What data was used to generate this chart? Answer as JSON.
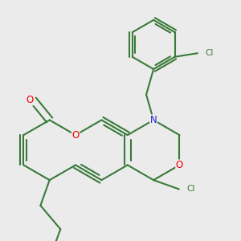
{
  "background_color": "#ebebeb",
  "bond_color": "#3a7a3a",
  "bond_width": 1.5,
  "atom_colors": {
    "O": "#ee0000",
    "N": "#2222cc",
    "Cl": "#3a7a3a",
    "C": "#3a7a3a"
  },
  "font_size_atom": 8.5,
  "font_size_cl": 7.5
}
